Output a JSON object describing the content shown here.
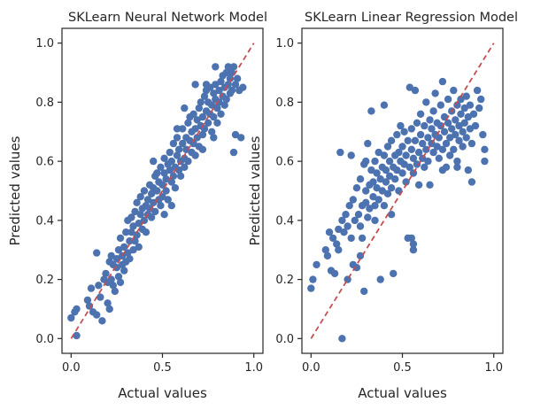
{
  "chart_data": [
    {
      "type": "scatter",
      "title": "SKLearn Neural Network Model",
      "xlabel": "Actual values",
      "ylabel": "Predicted values",
      "xlim": [
        -0.05,
        1.05
      ],
      "ylim": [
        -0.05,
        1.05
      ],
      "xticks": [
        "0.0",
        "0.5",
        "1.0"
      ],
      "yticks": [
        "0.0",
        "0.2",
        "0.4",
        "0.6",
        "0.8",
        "1.0"
      ],
      "reference_line": {
        "x": [
          0,
          1
        ],
        "y": [
          0,
          1
        ],
        "color": "#c44e52",
        "style": "dashed"
      },
      "marker_color": "#4c72b0",
      "grid": false,
      "points": [
        [
          0.0,
          0.07
        ],
        [
          0.02,
          0.09
        ],
        [
          0.03,
          0.1
        ],
        [
          0.03,
          0.01
        ],
        [
          0.09,
          0.13
        ],
        [
          0.1,
          0.11
        ],
        [
          0.11,
          0.17
        ],
        [
          0.12,
          0.09
        ],
        [
          0.14,
          0.08
        ],
        [
          0.14,
          0.29
        ],
        [
          0.15,
          0.18
        ],
        [
          0.16,
          0.14
        ],
        [
          0.17,
          0.06
        ],
        [
          0.18,
          0.2
        ],
        [
          0.19,
          0.22
        ],
        [
          0.2,
          0.12
        ],
        [
          0.2,
          0.19
        ],
        [
          0.21,
          0.26
        ],
        [
          0.21,
          0.1
        ],
        [
          0.22,
          0.28
        ],
        [
          0.22,
          0.2
        ],
        [
          0.23,
          0.18
        ],
        [
          0.23,
          0.25
        ],
        [
          0.24,
          0.16
        ],
        [
          0.25,
          0.27
        ],
        [
          0.25,
          0.24
        ],
        [
          0.26,
          0.21
        ],
        [
          0.26,
          0.3
        ],
        [
          0.27,
          0.19
        ],
        [
          0.27,
          0.34
        ],
        [
          0.28,
          0.25
        ],
        [
          0.28,
          0.28
        ],
        [
          0.29,
          0.23
        ],
        [
          0.29,
          0.31
        ],
        [
          0.3,
          0.36
        ],
        [
          0.3,
          0.26
        ],
        [
          0.31,
          0.29
        ],
        [
          0.31,
          0.4
        ],
        [
          0.32,
          0.33
        ],
        [
          0.32,
          0.27
        ],
        [
          0.33,
          0.36
        ],
        [
          0.33,
          0.41
        ],
        [
          0.34,
          0.3
        ],
        [
          0.34,
          0.38
        ],
        [
          0.35,
          0.33
        ],
        [
          0.35,
          0.43
        ],
        [
          0.36,
          0.35
        ],
        [
          0.36,
          0.46
        ],
        [
          0.37,
          0.39
        ],
        [
          0.37,
          0.31
        ],
        [
          0.38,
          0.42
        ],
        [
          0.38,
          0.48
        ],
        [
          0.39,
          0.37
        ],
        [
          0.39,
          0.44
        ],
        [
          0.4,
          0.4
        ],
        [
          0.4,
          0.5
        ],
        [
          0.41,
          0.45
        ],
        [
          0.41,
          0.36
        ],
        [
          0.42,
          0.47
        ],
        [
          0.42,
          0.42
        ],
        [
          0.43,
          0.52
        ],
        [
          0.43,
          0.44
        ],
        [
          0.44,
          0.49
        ],
        [
          0.44,
          0.41
        ],
        [
          0.45,
          0.51
        ],
        [
          0.45,
          0.46
        ],
        [
          0.46,
          0.55
        ],
        [
          0.46,
          0.43
        ],
        [
          0.47,
          0.5
        ],
        [
          0.47,
          0.56
        ],
        [
          0.48,
          0.47
        ],
        [
          0.48,
          0.53
        ],
        [
          0.49,
          0.45
        ],
        [
          0.49,
          0.58
        ],
        [
          0.5,
          0.52
        ],
        [
          0.5,
          0.48
        ],
        [
          0.51,
          0.56
        ],
        [
          0.51,
          0.61
        ],
        [
          0.52,
          0.5
        ],
        [
          0.52,
          0.54
        ],
        [
          0.53,
          0.59
        ],
        [
          0.53,
          0.47
        ],
        [
          0.54,
          0.57
        ],
        [
          0.54,
          0.63
        ],
        [
          0.55,
          0.53
        ],
        [
          0.55,
          0.6
        ],
        [
          0.56,
          0.55
        ],
        [
          0.56,
          0.66
        ],
        [
          0.57,
          0.58
        ],
        [
          0.57,
          0.51
        ],
        [
          0.58,
          0.62
        ],
        [
          0.58,
          0.68
        ],
        [
          0.59,
          0.57
        ],
        [
          0.59,
          0.64
        ],
        [
          0.6,
          0.6
        ],
        [
          0.6,
          0.55
        ],
        [
          0.61,
          0.66
        ],
        [
          0.61,
          0.71
        ],
        [
          0.62,
          0.61
        ],
        [
          0.62,
          0.58
        ],
        [
          0.63,
          0.68
        ],
        [
          0.63,
          0.64
        ],
        [
          0.64,
          0.73
        ],
        [
          0.64,
          0.6
        ],
        [
          0.65,
          0.67
        ],
        [
          0.65,
          0.75
        ],
        [
          0.66,
          0.63
        ],
        [
          0.66,
          0.7
        ],
        [
          0.67,
          0.66
        ],
        [
          0.67,
          0.76
        ],
        [
          0.68,
          0.71
        ],
        [
          0.68,
          0.62
        ],
        [
          0.69,
          0.74
        ],
        [
          0.69,
          0.68
        ],
        [
          0.7,
          0.78
        ],
        [
          0.7,
          0.65
        ],
        [
          0.71,
          0.72
        ],
        [
          0.71,
          0.8
        ],
        [
          0.72,
          0.69
        ],
        [
          0.72,
          0.75
        ],
        [
          0.73,
          0.82
        ],
        [
          0.73,
          0.71
        ],
        [
          0.74,
          0.77
        ],
        [
          0.74,
          0.84
        ],
        [
          0.75,
          0.73
        ],
        [
          0.75,
          0.8
        ],
        [
          0.76,
          0.76
        ],
        [
          0.76,
          0.85
        ],
        [
          0.77,
          0.79
        ],
        [
          0.77,
          0.7
        ],
        [
          0.78,
          0.83
        ],
        [
          0.78,
          0.75
        ],
        [
          0.79,
          0.81
        ],
        [
          0.79,
          0.86
        ],
        [
          0.8,
          0.78
        ],
        [
          0.8,
          0.73
        ],
        [
          0.81,
          0.84
        ],
        [
          0.81,
          0.8
        ],
        [
          0.82,
          0.87
        ],
        [
          0.82,
          0.76
        ],
        [
          0.83,
          0.82
        ],
        [
          0.83,
          0.89
        ],
        [
          0.84,
          0.79
        ],
        [
          0.84,
          0.85
        ],
        [
          0.85,
          0.9
        ],
        [
          0.85,
          0.81
        ],
        [
          0.86,
          0.86
        ],
        [
          0.86,
          0.92
        ],
        [
          0.87,
          0.83
        ],
        [
          0.87,
          0.88
        ],
        [
          0.88,
          0.9
        ],
        [
          0.88,
          0.84
        ],
        [
          0.89,
          0.92
        ],
        [
          0.9,
          0.86
        ],
        [
          0.9,
          0.69
        ],
        [
          0.91,
          0.88
        ],
        [
          0.92,
          0.84
        ],
        [
          0.93,
          0.68
        ],
        [
          0.94,
          0.85
        ],
        [
          0.89,
          0.63
        ],
        [
          0.45,
          0.6
        ],
        [
          0.55,
          0.45
        ],
        [
          0.62,
          0.78
        ],
        [
          0.68,
          0.86
        ],
        [
          0.72,
          0.64
        ],
        [
          0.74,
          0.86
        ],
        [
          0.78,
          0.68
        ],
        [
          0.79,
          0.92
        ],
        [
          0.58,
          0.71
        ],
        [
          0.51,
          0.42
        ]
      ]
    },
    {
      "type": "scatter",
      "title": "SKLearn Linear Regression Model",
      "xlabel": "Actual values",
      "ylabel": "Predicted values",
      "xlim": [
        -0.05,
        1.05
      ],
      "ylim": [
        -0.05,
        1.05
      ],
      "xticks": [
        "0.0",
        "0.5",
        "1.0"
      ],
      "yticks": [
        "0.0",
        "0.2",
        "0.4",
        "0.6",
        "0.8",
        "1.0"
      ],
      "reference_line": {
        "x": [
          0,
          1
        ],
        "y": [
          0,
          1
        ],
        "color": "#c44e52",
        "style": "dashed"
      },
      "marker_color": "#4c72b0",
      "grid": false,
      "points": [
        [
          0.0,
          0.17
        ],
        [
          0.01,
          0.2
        ],
        [
          0.03,
          0.25
        ],
        [
          0.08,
          0.3
        ],
        [
          0.09,
          0.28
        ],
        [
          0.1,
          0.36
        ],
        [
          0.11,
          0.23
        ],
        [
          0.12,
          0.34
        ],
        [
          0.13,
          0.22
        ],
        [
          0.14,
          0.32
        ],
        [
          0.15,
          0.37
        ],
        [
          0.16,
          0.63
        ],
        [
          0.17,
          0.0
        ],
        [
          0.17,
          0.4
        ],
        [
          0.18,
          0.36
        ],
        [
          0.19,
          0.42
        ],
        [
          0.2,
          0.38
        ],
        [
          0.21,
          0.45
        ],
        [
          0.22,
          0.62
        ],
        [
          0.22,
          0.34
        ],
        [
          0.23,
          0.25
        ],
        [
          0.23,
          0.47
        ],
        [
          0.24,
          0.4
        ],
        [
          0.25,
          0.24
        ],
        [
          0.25,
          0.51
        ],
        [
          0.26,
          0.42
        ],
        [
          0.27,
          0.38
        ],
        [
          0.27,
          0.54
        ],
        [
          0.28,
          0.45
        ],
        [
          0.28,
          0.34
        ],
        [
          0.29,
          0.59
        ],
        [
          0.29,
          0.16
        ],
        [
          0.3,
          0.46
        ],
        [
          0.3,
          0.5
        ],
        [
          0.31,
          0.41
        ],
        [
          0.31,
          0.66
        ],
        [
          0.32,
          0.52
        ],
        [
          0.32,
          0.44
        ],
        [
          0.33,
          0.57
        ],
        [
          0.33,
          0.77
        ],
        [
          0.34,
          0.48
        ],
        [
          0.34,
          0.53
        ],
        [
          0.35,
          0.45
        ],
        [
          0.35,
          0.6
        ],
        [
          0.36,
          0.51
        ],
        [
          0.36,
          0.56
        ],
        [
          0.37,
          0.47
        ],
        [
          0.37,
          0.63
        ],
        [
          0.38,
          0.54
        ],
        [
          0.38,
          0.2
        ],
        [
          0.39,
          0.58
        ],
        [
          0.39,
          0.5
        ],
        [
          0.4,
          0.62
        ],
        [
          0.4,
          0.79
        ],
        [
          0.41,
          0.53
        ],
        [
          0.41,
          0.57
        ],
        [
          0.42,
          0.49
        ],
        [
          0.42,
          0.65
        ],
        [
          0.43,
          0.55
        ],
        [
          0.43,
          0.6
        ],
        [
          0.44,
          0.67
        ],
        [
          0.44,
          0.51
        ],
        [
          0.45,
          0.58
        ],
        [
          0.45,
          0.22
        ],
        [
          0.46,
          0.62
        ],
        [
          0.46,
          0.54
        ],
        [
          0.47,
          0.69
        ],
        [
          0.47,
          0.57
        ],
        [
          0.48,
          0.63
        ],
        [
          0.48,
          0.5
        ],
        [
          0.49,
          0.6
        ],
        [
          0.49,
          0.72
        ],
        [
          0.5,
          0.56
        ],
        [
          0.5,
          0.65
        ],
        [
          0.51,
          0.59
        ],
        [
          0.51,
          0.7
        ],
        [
          0.52,
          0.53
        ],
        [
          0.52,
          0.62
        ],
        [
          0.53,
          0.67
        ],
        [
          0.53,
          0.34
        ],
        [
          0.54,
          0.58
        ],
        [
          0.54,
          0.85
        ],
        [
          0.55,
          0.64
        ],
        [
          0.55,
          0.71
        ],
        [
          0.56,
          0.56
        ],
        [
          0.56,
          0.61
        ],
        [
          0.57,
          0.84
        ],
        [
          0.57,
          0.67
        ],
        [
          0.58,
          0.59
        ],
        [
          0.58,
          0.73
        ],
        [
          0.59,
          0.63
        ],
        [
          0.59,
          0.52
        ],
        [
          0.6,
          0.69
        ],
        [
          0.6,
          0.76
        ],
        [
          0.61,
          0.61
        ],
        [
          0.61,
          0.66
        ],
        [
          0.62,
          0.58
        ],
        [
          0.62,
          0.72
        ],
        [
          0.63,
          0.64
        ],
        [
          0.63,
          0.8
        ],
        [
          0.64,
          0.68
        ],
        [
          0.64,
          0.6
        ],
        [
          0.65,
          0.74
        ],
        [
          0.65,
          0.52
        ],
        [
          0.66,
          0.66
        ],
        [
          0.66,
          0.71
        ],
        [
          0.67,
          0.63
        ],
        [
          0.67,
          0.77
        ],
        [
          0.68,
          0.69
        ],
        [
          0.68,
          0.83
        ],
        [
          0.69,
          0.65
        ],
        [
          0.69,
          0.73
        ],
        [
          0.7,
          0.61
        ],
        [
          0.7,
          0.68
        ],
        [
          0.71,
          0.79
        ],
        [
          0.71,
          0.72
        ],
        [
          0.72,
          0.64
        ],
        [
          0.72,
          0.87
        ],
        [
          0.73,
          0.7
        ],
        [
          0.73,
          0.75
        ],
        [
          0.74,
          0.66
        ],
        [
          0.74,
          0.58
        ],
        [
          0.75,
          0.73
        ],
        [
          0.75,
          0.81
        ],
        [
          0.76,
          0.68
        ],
        [
          0.76,
          0.62
        ],
        [
          0.77,
          0.77
        ],
        [
          0.77,
          0.71
        ],
        [
          0.78,
          0.64
        ],
        [
          0.78,
          0.84
        ],
        [
          0.79,
          0.74
        ],
        [
          0.79,
          0.69
        ],
        [
          0.8,
          0.79
        ],
        [
          0.8,
          0.6
        ],
        [
          0.81,
          0.72
        ],
        [
          0.81,
          0.67
        ],
        [
          0.82,
          0.76
        ],
        [
          0.82,
          0.81
        ],
        [
          0.83,
          0.7
        ],
        [
          0.83,
          0.65
        ],
        [
          0.84,
          0.78
        ],
        [
          0.84,
          0.73
        ],
        [
          0.85,
          0.68
        ],
        [
          0.85,
          0.82
        ],
        [
          0.86,
          0.75
        ],
        [
          0.86,
          0.57
        ],
        [
          0.87,
          0.79
        ],
        [
          0.87,
          0.71
        ],
        [
          0.88,
          0.66
        ],
        [
          0.89,
          0.76
        ],
        [
          0.9,
          0.72
        ],
        [
          0.91,
          0.84
        ],
        [
          0.92,
          0.78
        ],
        [
          0.93,
          0.81
        ],
        [
          0.94,
          0.69
        ],
        [
          0.95,
          0.64
        ],
        [
          0.95,
          0.6
        ],
        [
          0.88,
          0.53
        ],
        [
          0.8,
          0.58
        ],
        [
          0.72,
          0.57
        ],
        [
          0.55,
          0.34
        ],
        [
          0.56,
          0.3
        ],
        [
          0.56,
          0.32
        ],
        [
          0.3,
          0.6
        ],
        [
          0.35,
          0.4
        ],
        [
          0.4,
          0.45
        ],
        [
          0.2,
          0.2
        ],
        [
          0.15,
          0.3
        ],
        [
          0.27,
          0.28
        ],
        [
          0.44,
          0.42
        ]
      ]
    }
  ]
}
